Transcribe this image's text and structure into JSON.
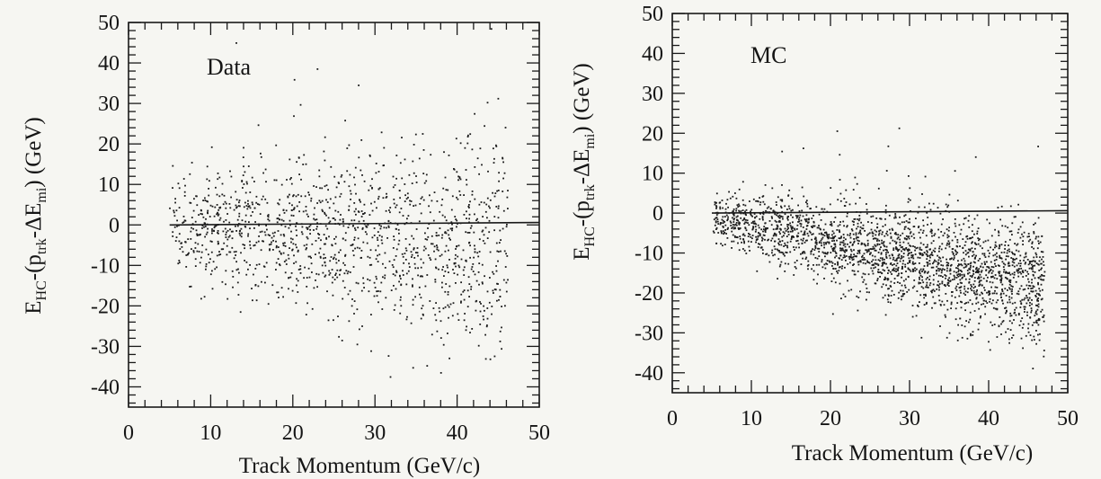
{
  "chart_data": [
    {
      "type": "scatter",
      "label": "Data",
      "xlabel": "Track Momentum (GeV/c)",
      "ylabel_main": "E",
      "ylabel_sub1": "HC",
      "ylabel_mid": "-(p",
      "ylabel_sub2": "trk",
      "ylabel_mid2": "-ΔE",
      "ylabel_sub3": "mi",
      "ylabel_tail": ") (GeV)",
      "xlim": [
        0,
        50
      ],
      "ylim": [
        -45,
        50
      ],
      "xticks": [
        "0",
        "10",
        "20",
        "30",
        "40",
        "50"
      ],
      "yticks": [
        "50",
        "40",
        "30",
        "20",
        "10",
        "0",
        "-10",
        "-20",
        "-30",
        "-40"
      ],
      "reference_line_y": 0,
      "grid": false,
      "points_description_values": {
        "x_range": [
          5,
          46
        ],
        "mean_residual_start": 0,
        "mean_residual_end": -4,
        "spread_start": 6,
        "spread_end": 14,
        "n_points": 1400
      }
    },
    {
      "type": "scatter",
      "label": "MC",
      "xlabel": "Track Momentum (GeV/c)",
      "ylabel_main": "E",
      "ylabel_sub1": "HC",
      "ylabel_mid": "-(p",
      "ylabel_sub2": "trk",
      "ylabel_mid2": "-ΔE",
      "ylabel_sub3": "mi",
      "ylabel_tail": ") (GeV)",
      "xlim": [
        0,
        50
      ],
      "ylim": [
        -45,
        50
      ],
      "xticks": [
        "0",
        "10",
        "20",
        "30",
        "40",
        "50"
      ],
      "yticks": [
        "50",
        "40",
        "30",
        "20",
        "10",
        "0",
        "-10",
        "-20",
        "-30",
        "-40"
      ],
      "reference_line_y": 0,
      "grid": false,
      "points_description_values": {
        "x_range": [
          5,
          47
        ],
        "mean_residual_start": -1,
        "mean_residual_end": -18,
        "spread_start": 3,
        "spread_end": 8,
        "n_points": 2300
      }
    }
  ]
}
